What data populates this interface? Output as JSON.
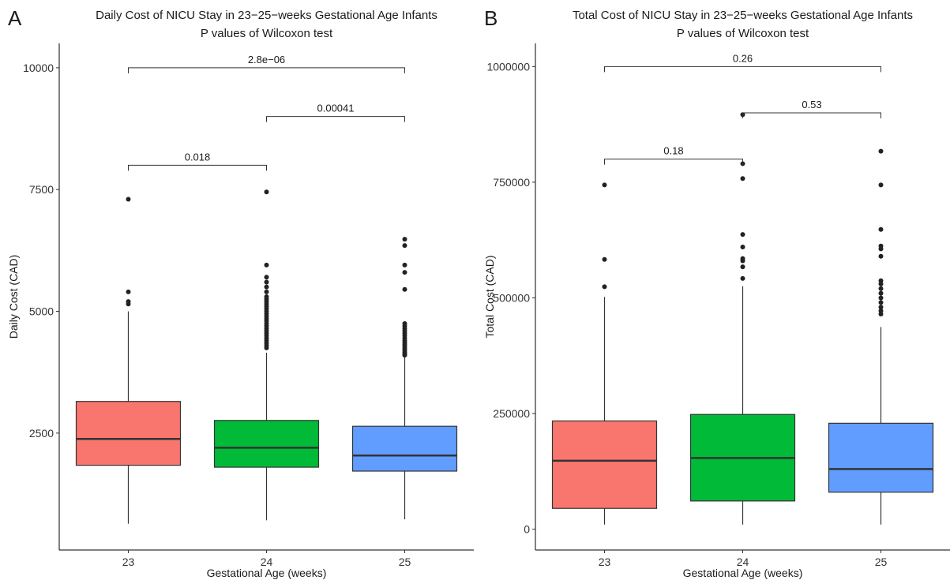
{
  "chart_data": [
    {
      "panel_letter": "A",
      "type": "box",
      "title": "Daily Cost of NICU Stay in 23−25−weeks Gestational Age Infants",
      "subtitle": "P values of Wilcoxon test",
      "xlabel": "Gestational Age (weeks)",
      "ylabel": "Daily Cost (CAD)",
      "ylim": [
        100,
        10500
      ],
      "yticks": [
        2500,
        5000,
        7500,
        10000
      ],
      "ytick_labels": [
        "2500",
        "5000",
        "7500",
        "10000"
      ],
      "categories": [
        "23",
        "24",
        "25"
      ],
      "colors": [
        "#f8766d",
        "#00ba38",
        "#619cff"
      ],
      "boxes": [
        {
          "category": "23",
          "whisker_low": 640,
          "q1": 1840,
          "median": 2380,
          "q3": 3150,
          "whisker_high": 5000,
          "outliers": [
            5150,
            5200,
            5400,
            7300
          ]
        },
        {
          "category": "24",
          "whisker_low": 710,
          "q1": 1800,
          "median": 2200,
          "q3": 2760,
          "whisker_high": 4150,
          "outliers": [
            4250,
            4300,
            4350,
            4400,
            4450,
            4500,
            4550,
            4600,
            4650,
            4700,
            4750,
            4800,
            4850,
            4900,
            4950,
            5000,
            5050,
            5100,
            5150,
            5200,
            5250,
            5300,
            5400,
            5500,
            5600,
            5700,
            5950,
            7450
          ]
        },
        {
          "category": "25",
          "whisker_low": 730,
          "q1": 1720,
          "median": 2040,
          "q3": 2640,
          "whisker_high": 4050,
          "outliers": [
            4100,
            4130,
            4160,
            4200,
            4240,
            4280,
            4320,
            4360,
            4400,
            4450,
            4500,
            4550,
            4600,
            4650,
            4700,
            4750,
            5450,
            5800,
            5950,
            6350,
            6480
          ]
        }
      ],
      "comparisons": [
        {
          "from": "23",
          "to": "24",
          "y": 8000,
          "label": "0.018"
        },
        {
          "from": "24",
          "to": "25",
          "y": 9000,
          "label": "0.00041"
        },
        {
          "from": "23",
          "to": "25",
          "y": 10000,
          "label": "2.8e−06"
        }
      ],
      "grid": false
    },
    {
      "panel_letter": "B",
      "type": "box",
      "title": "Total Cost of NICU Stay in 23−25−weeks Gestational Age Infants",
      "subtitle": "P values of Wilcoxon test",
      "xlabel": "Gestational Age (weeks)",
      "ylabel": "Total Cost (CAD)",
      "ylim": [
        -45000,
        1050000
      ],
      "yticks": [
        0,
        250000,
        500000,
        750000,
        1000000
      ],
      "ytick_labels": [
        "0",
        "250000",
        "500000",
        "750000",
        "1000000"
      ],
      "categories": [
        "23",
        "24",
        "25"
      ],
      "colors": [
        "#f8766d",
        "#00ba38",
        "#619cff"
      ],
      "boxes": [
        {
          "category": "23",
          "whisker_low": 10000,
          "q1": 45000,
          "median": 148000,
          "q3": 234000,
          "whisker_high": 502000,
          "outliers": [
            524000,
            583000,
            744000
          ]
        },
        {
          "category": "24",
          "whisker_low": 10000,
          "q1": 61000,
          "median": 154000,
          "q3": 248000,
          "whisker_high": 525000,
          "outliers": [
            542000,
            567000,
            580000,
            585000,
            610000,
            637000,
            758000,
            790000,
            896000
          ]
        },
        {
          "category": "25",
          "whisker_low": 10000,
          "q1": 80000,
          "median": 130000,
          "q3": 229000,
          "whisker_high": 437000,
          "outliers": [
            465000,
            472000,
            480000,
            490000,
            500000,
            510000,
            520000,
            530000,
            537000,
            590000,
            606000,
            612000,
            648000,
            744000,
            817000
          ]
        }
      ],
      "comparisons": [
        {
          "from": "23",
          "to": "24",
          "y": 800000,
          "label": "0.18"
        },
        {
          "from": "24",
          "to": "25",
          "y": 900000,
          "label": "0.53"
        },
        {
          "from": "23",
          "to": "25",
          "y": 1000000,
          "label": "0.26"
        }
      ],
      "grid": false
    }
  ]
}
